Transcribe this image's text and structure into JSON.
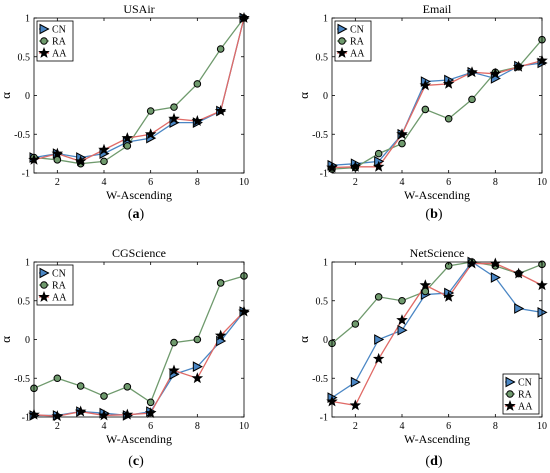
{
  "colors": {
    "CN": "#4a86c4",
    "RA": "#6f9a6d",
    "AA": "#e06a66",
    "marker": "#000000",
    "axis": "#000000"
  },
  "chart_data": [
    {
      "type": "line",
      "title": "USAir",
      "caption": "(a)",
      "xlabel": "W-Ascending",
      "ylabel": "α",
      "xlim": [
        1,
        10
      ],
      "ylim": [
        -1,
        1
      ],
      "xticks": [
        "2",
        "4",
        "6",
        "8",
        "10"
      ],
      "yticks": [
        "-1",
        "-0.5",
        "0",
        "0.5",
        "1"
      ],
      "legend_position": "top-left",
      "x": [
        1,
        2,
        3,
        4,
        5,
        6,
        7,
        8,
        9,
        10
      ],
      "series": [
        {
          "name": "CN",
          "marker": "triangle-right",
          "values": [
            -0.8,
            -0.75,
            -0.8,
            -0.75,
            -0.6,
            -0.55,
            -0.35,
            -0.35,
            -0.2,
            1.0
          ]
        },
        {
          "name": "RA",
          "marker": "circle",
          "values": [
            -0.8,
            -0.83,
            -0.88,
            -0.85,
            -0.65,
            -0.2,
            -0.15,
            0.15,
            0.6,
            1.0
          ]
        },
        {
          "name": "AA",
          "marker": "star",
          "values": [
            -0.83,
            -0.75,
            -0.85,
            -0.7,
            -0.55,
            -0.5,
            -0.3,
            -0.33,
            -0.2,
            1.0
          ]
        }
      ]
    },
    {
      "type": "line",
      "title": "Email",
      "caption": "(b)",
      "xlabel": "W-Ascending",
      "ylabel": "α",
      "xlim": [
        1,
        10
      ],
      "ylim": [
        -1,
        1
      ],
      "xticks": [
        "2",
        "4",
        "6",
        "8",
        "10"
      ],
      "yticks": [
        "-1",
        "-0.5",
        "0",
        "0.5",
        "1"
      ],
      "legend_position": "top-left",
      "x": [
        1,
        2,
        3,
        4,
        5,
        6,
        7,
        8,
        9,
        10
      ],
      "series": [
        {
          "name": "CN",
          "marker": "triangle-right",
          "values": [
            -0.9,
            -0.88,
            -0.85,
            -0.5,
            0.18,
            0.2,
            0.3,
            0.22,
            0.38,
            0.42
          ]
        },
        {
          "name": "RA",
          "marker": "circle",
          "values": [
            -0.95,
            -0.93,
            -0.75,
            -0.62,
            -0.18,
            -0.3,
            -0.05,
            0.3,
            0.37,
            0.72
          ]
        },
        {
          "name": "AA",
          "marker": "star",
          "values": [
            -0.93,
            -0.92,
            -0.92,
            -0.5,
            0.13,
            0.15,
            0.3,
            0.28,
            0.37,
            0.45
          ]
        }
      ]
    },
    {
      "type": "line",
      "title": "CGScience",
      "caption": "(c)",
      "xlabel": "W-Ascending",
      "ylabel": "α",
      "xlim": [
        1,
        10
      ],
      "ylim": [
        -1,
        1
      ],
      "xticks": [
        "2",
        "4",
        "6",
        "8",
        "10"
      ],
      "yticks": [
        "-1",
        "-0.5",
        "0",
        "0.5",
        "1"
      ],
      "legend_position": "top-left",
      "x": [
        1,
        2,
        3,
        4,
        5,
        6,
        7,
        8,
        9,
        10
      ],
      "series": [
        {
          "name": "CN",
          "marker": "triangle-right",
          "values": [
            -0.98,
            -0.98,
            -0.93,
            -0.95,
            -0.98,
            -0.93,
            -0.45,
            -0.35,
            -0.02,
            0.36
          ]
        },
        {
          "name": "RA",
          "marker": "circle",
          "values": [
            -0.63,
            -0.5,
            -0.6,
            -0.73,
            -0.61,
            -0.81,
            -0.04,
            0.0,
            0.73,
            0.82
          ]
        },
        {
          "name": "AA",
          "marker": "star",
          "values": [
            -0.97,
            -0.99,
            -0.93,
            -0.98,
            -0.97,
            -0.95,
            -0.4,
            -0.5,
            0.05,
            0.36
          ]
        }
      ]
    },
    {
      "type": "line",
      "title": "NetScience",
      "caption": "(d)",
      "xlabel": "W-Ascending",
      "ylabel": "α",
      "xlim": [
        1,
        10
      ],
      "ylim": [
        -1,
        1
      ],
      "xticks": [
        "2",
        "4",
        "6",
        "8",
        "10"
      ],
      "yticks": [
        "-1",
        "-0.5",
        "0",
        "0.5",
        "1"
      ],
      "legend_position": "bottom-right",
      "x": [
        1,
        2,
        3,
        4,
        5,
        6,
        7,
        8,
        9,
        10
      ],
      "series": [
        {
          "name": "CN",
          "marker": "triangle-right",
          "values": [
            -0.75,
            -0.55,
            0.0,
            0.12,
            0.58,
            0.6,
            1.0,
            0.8,
            0.4,
            0.35
          ]
        },
        {
          "name": "RA",
          "marker": "circle",
          "values": [
            -0.05,
            0.2,
            0.55,
            0.5,
            0.62,
            0.95,
            1.0,
            0.95,
            0.85,
            0.97
          ]
        },
        {
          "name": "AA",
          "marker": "star",
          "values": [
            -0.8,
            -0.85,
            -0.25,
            0.25,
            0.7,
            0.55,
            0.98,
            0.98,
            0.85,
            0.7
          ]
        }
      ]
    }
  ]
}
